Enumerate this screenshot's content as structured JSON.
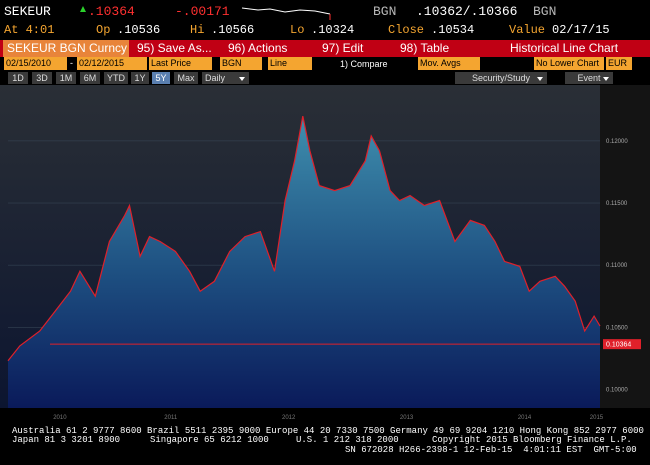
{
  "header": {
    "ticker": "SEKEUR",
    "last_price": ".10364",
    "change": "-.00171",
    "source_left": "BGN",
    "bid_ask": ".10362/.10366",
    "source_right": "BGN",
    "time": "At 4:01",
    "open_label": "Op",
    "open": ".10536",
    "high_label": "Hi",
    "high": ".10566",
    "low_label": "Lo",
    "low": ".10324",
    "close_label": "Close",
    "close": ".10534",
    "value_label": "Value",
    "value_date": "02/17/15"
  },
  "menu": {
    "security": "SEKEUR BGN Curncy",
    "items": [
      "95) Save As...",
      "96) Actions",
      "97) Edit",
      "98) Table"
    ],
    "title": "Historical Line Chart"
  },
  "settings": {
    "start_date": "02/15/2010",
    "separator": "-",
    "end_date": "02/12/2015",
    "field": "Last Price",
    "source": "BGN",
    "style": "Line",
    "compare": "1) Compare",
    "moving_averages": "Mov. Avgs",
    "lower_chart": "No Lower Chart",
    "currency": "EUR"
  },
  "periods": {
    "ranges": [
      "1D",
      "3D",
      "1M",
      "6M",
      "YTD",
      "1Y",
      "5Y",
      "Max"
    ],
    "frequency": "Daily",
    "security_study": "Security/Study",
    "event": "Event"
  },
  "chart_data": {
    "type": "area",
    "color": "#e0202a",
    "x": [
      2010.12,
      2010.22,
      2010.39,
      2010.52,
      2010.65,
      2010.73,
      2010.86,
      2010.98,
      2011.11,
      2011.15,
      2011.24,
      2011.32,
      2011.41,
      2011.54,
      2011.66,
      2011.75,
      2011.87,
      2012.0,
      2012.13,
      2012.26,
      2012.38,
      2012.47,
      2012.55,
      2012.62,
      2012.68,
      2012.76,
      2012.89,
      2013.02,
      2013.15,
      2013.2,
      2013.27,
      2013.36,
      2013.44,
      2013.53,
      2013.65,
      2013.78,
      2013.91,
      2014.04,
      2014.16,
      2014.25,
      2014.33,
      2014.46,
      2014.54,
      2014.63,
      2014.76,
      2014.84,
      2014.93,
      2015.01,
      2015.09,
      2015.14
    ],
    "values": [
      0.1023,
      0.1035,
      0.1047,
      0.1063,
      0.1079,
      0.1095,
      0.1075,
      0.1119,
      0.114,
      0.1148,
      0.1107,
      0.1123,
      0.1119,
      0.1111,
      0.1095,
      0.1079,
      0.1087,
      0.1111,
      0.1123,
      0.1127,
      0.1095,
      0.1152,
      0.1184,
      0.122,
      0.1192,
      0.1164,
      0.116,
      0.1164,
      0.1184,
      0.1204,
      0.1192,
      0.116,
      0.1152,
      0.1156,
      0.1148,
      0.1152,
      0.1119,
      0.1136,
      0.1132,
      0.1119,
      0.1103,
      0.1099,
      0.1079,
      0.1087,
      0.1091,
      0.1083,
      0.1071,
      0.1047,
      0.1059,
      0.1051
    ],
    "xlim": [
      2010.12,
      2015.14
    ],
    "xticks": [
      {
        "value": 2010.56,
        "label": "2010"
      },
      {
        "value": 2011.5,
        "label": "2011"
      },
      {
        "value": 2012.5,
        "label": "2012"
      },
      {
        "value": 2013.5,
        "label": "2013"
      },
      {
        "value": 2014.5,
        "label": "2014"
      },
      {
        "value": 2015.11,
        "label": "2015"
      }
    ],
    "ylim": [
      0.0985,
      0.1245
    ],
    "yticks": [
      {
        "value": 0.1,
        "label": "0.10000"
      },
      {
        "value": 0.105,
        "label": "0.10500"
      },
      {
        "value": 0.11,
        "label": "0.11000"
      },
      {
        "value": 0.115,
        "label": "0.11500"
      },
      {
        "value": 0.12,
        "label": "0.12000"
      }
    ],
    "last_value": 0.10364,
    "grid": true
  },
  "footer": {
    "line1": "Australia 61 2 9777 8600 Brazil 5511 2395 9000 Europe 44 20 7330 7500 Germany 49 69 9204 1210 Hong Kong 852 2977 6000",
    "line2": [
      "Japan 81 3 3201 8900",
      "Singapore 65 6212 1000",
      "U.S. 1 212 318 2000",
      "Copyright 2015 Bloomberg Finance L.P."
    ],
    "line3": "SN 672028 H266-2398-1 12-Feb-15  4:01:11 EST  GMT-5:00"
  }
}
